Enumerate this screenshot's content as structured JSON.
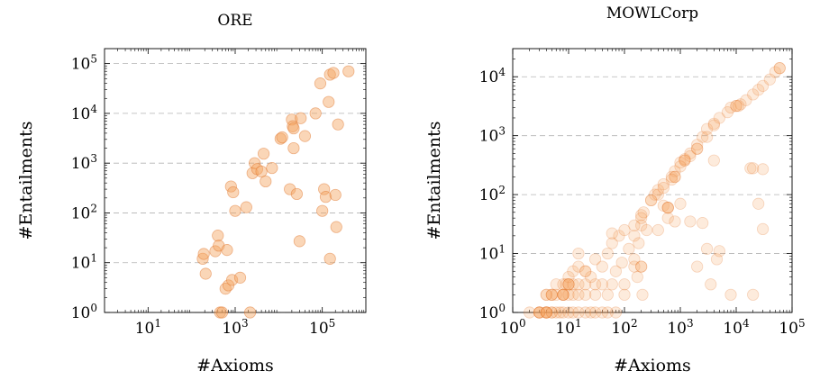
{
  "colors": {
    "marker_fill": "#f4a460",
    "marker_edge": "#e0742a",
    "grid": "#b3b3b3"
  },
  "chart_data": [
    {
      "type": "scatter",
      "title": "ORE",
      "xlabel": "#Axioms",
      "ylabel": "#Entailments",
      "xscale": "log",
      "yscale": "log",
      "xlim": [
        1,
        1000000
      ],
      "ylim": [
        1,
        200000
      ],
      "xticks": [
        {
          "base": "10",
          "exp": "1",
          "value": 10
        },
        {
          "base": "10",
          "exp": "3",
          "value": 1000
        },
        {
          "base": "10",
          "exp": "5",
          "value": 100000
        }
      ],
      "yticks": [
        {
          "base": "10",
          "exp": "0",
          "value": 1
        },
        {
          "base": "10",
          "exp": "1",
          "value": 10
        },
        {
          "base": "10",
          "exp": "2",
          "value": 100
        },
        {
          "base": "10",
          "exp": "3",
          "value": 1000
        },
        {
          "base": "10",
          "exp": "4",
          "value": 10000
        },
        {
          "base": "10",
          "exp": "5",
          "value": 100000
        }
      ],
      "grid": "horizontal dashed",
      "marker_opacity": 0.45,
      "points": [
        [
          180,
          12
        ],
        [
          190,
          15
        ],
        [
          210,
          6
        ],
        [
          350,
          17
        ],
        [
          400,
          35
        ],
        [
          420,
          22
        ],
        [
          450,
          1
        ],
        [
          500,
          1
        ],
        [
          600,
          3
        ],
        [
          650,
          18
        ],
        [
          700,
          3.5
        ],
        [
          800,
          340
        ],
        [
          850,
          4.5
        ],
        [
          900,
          260
        ],
        [
          1000,
          110
        ],
        [
          1300,
          5
        ],
        [
          1800,
          130
        ],
        [
          2200,
          1
        ],
        [
          2500,
          630
        ],
        [
          2800,
          1000
        ],
        [
          3200,
          760
        ],
        [
          4000,
          680
        ],
        [
          4500,
          1550
        ],
        [
          5000,
          430
        ],
        [
          7000,
          800
        ],
        [
          11000,
          3100
        ],
        [
          12000,
          3300
        ],
        [
          20000,
          7500
        ],
        [
          21000,
          5500
        ],
        [
          22000,
          5000
        ],
        [
          18000,
          300
        ],
        [
          22000,
          2000
        ],
        [
          26000,
          240
        ],
        [
          30000,
          27
        ],
        [
          32000,
          8000
        ],
        [
          40000,
          3500
        ],
        [
          70000,
          10000
        ],
        [
          90000,
          40000
        ],
        [
          100000,
          110
        ],
        [
          110000,
          300
        ],
        [
          120000,
          210
        ],
        [
          140000,
          17000
        ],
        [
          150000,
          60000
        ],
        [
          150000,
          12
        ],
        [
          180000,
          65000
        ],
        [
          200000,
          230
        ],
        [
          210000,
          52
        ],
        [
          230000,
          6000
        ],
        [
          400000,
          70000
        ]
      ]
    },
    {
      "type": "scatter",
      "title": "MOWLCorp",
      "xlabel": "#Axioms",
      "ylabel": "#Entailments",
      "xscale": "log",
      "yscale": "log",
      "xlim": [
        1,
        100000
      ],
      "ylim": [
        1,
        30000
      ],
      "xticks": [
        {
          "base": "10",
          "exp": "0",
          "value": 1
        },
        {
          "base": "10",
          "exp": "1",
          "value": 10
        },
        {
          "base": "10",
          "exp": "2",
          "value": 100
        },
        {
          "base": "10",
          "exp": "3",
          "value": 1000
        },
        {
          "base": "10",
          "exp": "4",
          "value": 10000
        },
        {
          "base": "10",
          "exp": "5",
          "value": 100000
        }
      ],
      "yticks": [
        {
          "base": "10",
          "exp": "0",
          "value": 1
        },
        {
          "base": "10",
          "exp": "1",
          "value": 10
        },
        {
          "base": "10",
          "exp": "2",
          "value": 100
        },
        {
          "base": "10",
          "exp": "3",
          "value": 1000
        },
        {
          "base": "10",
          "exp": "4",
          "value": 10000
        }
      ],
      "grid": "horizontal dashed",
      "marker_opacity": 0.22,
      "points": [
        [
          2,
          1
        ],
        [
          3,
          1
        ],
        [
          3,
          1
        ],
        [
          3,
          1
        ],
        [
          4,
          1
        ],
        [
          4,
          1
        ],
        [
          4,
          1
        ],
        [
          5,
          1
        ],
        [
          5,
          1
        ],
        [
          6,
          1
        ],
        [
          7,
          1
        ],
        [
          8,
          1
        ],
        [
          10,
          1
        ],
        [
          12,
          1
        ],
        [
          15,
          1
        ],
        [
          20,
          1
        ],
        [
          25,
          1
        ],
        [
          30,
          1
        ],
        [
          40,
          1
        ],
        [
          50,
          1
        ],
        [
          70,
          1
        ],
        [
          4,
          2
        ],
        [
          5,
          2
        ],
        [
          5,
          2
        ],
        [
          6,
          2
        ],
        [
          8,
          2
        ],
        [
          8,
          2
        ],
        [
          10,
          2
        ],
        [
          12,
          2
        ],
        [
          15,
          2
        ],
        [
          20,
          2
        ],
        [
          30,
          2
        ],
        [
          50,
          2
        ],
        [
          100,
          2
        ],
        [
          6,
          3
        ],
        [
          8,
          3
        ],
        [
          9,
          3
        ],
        [
          10,
          3
        ],
        [
          12,
          3
        ],
        [
          15,
          3
        ],
        [
          20,
          3
        ],
        [
          30,
          3
        ],
        [
          60,
          3
        ],
        [
          100,
          3
        ],
        [
          10,
          4
        ],
        [
          12,
          5
        ],
        [
          15,
          6
        ],
        [
          20,
          5
        ],
        [
          25,
          4
        ],
        [
          30,
          8
        ],
        [
          40,
          6
        ],
        [
          50,
          10
        ],
        [
          60,
          15
        ],
        [
          70,
          5
        ],
        [
          80,
          20
        ],
        [
          90,
          7
        ],
        [
          100,
          25
        ],
        [
          120,
          12
        ],
        [
          150,
          8
        ],
        [
          200,
          30
        ],
        [
          250,
          25
        ],
        [
          15,
          10
        ],
        [
          20,
          5
        ],
        [
          40,
          3
        ],
        [
          60,
          22
        ],
        [
          150,
          20
        ],
        [
          150,
          6
        ],
        [
          180,
          15
        ],
        [
          170,
          4
        ],
        [
          200,
          6
        ],
        [
          210,
          2
        ],
        [
          400,
          25
        ],
        [
          500,
          65
        ],
        [
          600,
          40
        ],
        [
          800,
          35
        ],
        [
          1000,
          70
        ],
        [
          1500,
          35
        ],
        [
          2000,
          6
        ],
        [
          2500,
          33
        ],
        [
          3000,
          12
        ],
        [
          3500,
          3
        ],
        [
          4500,
          8
        ],
        [
          5000,
          11
        ],
        [
          8000,
          2
        ],
        [
          20000,
          2
        ],
        [
          25000,
          70
        ],
        [
          30000,
          26
        ],
        [
          18000,
          280
        ],
        [
          30000,
          270
        ],
        [
          20000,
          280
        ],
        [
          4000,
          380
        ],
        [
          200,
          45
        ],
        [
          220,
          50
        ],
        [
          300,
          80
        ],
        [
          350,
          100
        ],
        [
          400,
          120
        ],
        [
          500,
          150
        ],
        [
          600,
          60
        ],
        [
          700,
          200
        ],
        [
          800,
          250
        ],
        [
          1000,
          350
        ],
        [
          1200,
          400
        ],
        [
          1500,
          500
        ],
        [
          2000,
          700
        ],
        [
          2500,
          950
        ],
        [
          3000,
          1300
        ],
        [
          4000,
          1600
        ],
        [
          5000,
          2000
        ],
        [
          7000,
          2500
        ],
        [
          8000,
          3000
        ],
        [
          10000,
          3200
        ],
        [
          12000,
          3400
        ],
        [
          15000,
          4000
        ],
        [
          20000,
          5000
        ],
        [
          25000,
          6000
        ],
        [
          30000,
          7000
        ],
        [
          40000,
          9000
        ],
        [
          50000,
          12000
        ],
        [
          60000,
          14000
        ],
        [
          3,
          1
        ],
        [
          4,
          1
        ],
        [
          4,
          1
        ],
        [
          4,
          2
        ],
        [
          5,
          2
        ],
        [
          8,
          2
        ],
        [
          10,
          3
        ],
        [
          200,
          6
        ],
        [
          600,
          60
        ],
        [
          600,
          60
        ],
        [
          800,
          200
        ],
        [
          800,
          200
        ],
        [
          1200,
          380
        ],
        [
          1200,
          380
        ],
        [
          2000,
          600
        ],
        [
          2000,
          600
        ],
        [
          3000,
          950
        ],
        [
          4000,
          1500
        ],
        [
          10000,
          3200
        ],
        [
          11000,
          3200
        ],
        [
          60000,
          14000
        ],
        [
          300,
          80
        ],
        [
          400,
          100
        ],
        [
          500,
          130
        ],
        [
          1000,
          300
        ],
        [
          1500,
          450
        ],
        [
          150,
          30
        ],
        [
          200,
          40
        ],
        [
          700,
          180
        ],
        [
          10,
          3
        ],
        [
          8,
          2
        ]
      ]
    }
  ]
}
